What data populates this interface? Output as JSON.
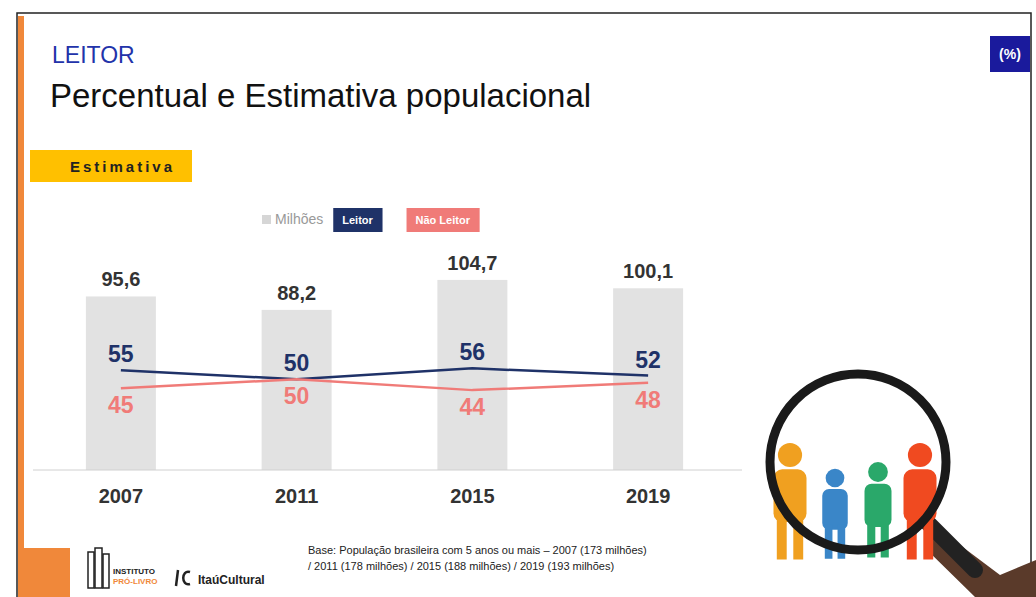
{
  "chart_data": {
    "type": "bar",
    "subtitle": "LEITOR",
    "title": "Percentual e Estimativa populacional",
    "annotations": [
      "Estimativa",
      "(%)",
      "Base: População brasileira com 5 anos ou mais – 2007 (173 milhões)",
      "/ 2011 (178 milhões) / 2015 (188 milhões) / 2019 (193 milhões)",
      "INSTITUTO",
      "PRÓ-LIVRO",
      "ItaúCultural"
    ],
    "categories": [
      "2007",
      "2011",
      "2015",
      "2019"
    ],
    "series": [
      {
        "name": "Milhões",
        "type": "bar",
        "color": "#e2e2e2",
        "values": [
          95.6,
          88.2,
          104.7,
          100.1
        ],
        "value_labels": [
          "95,6",
          "88,2",
          "104,7",
          "100,1"
        ]
      },
      {
        "name": "Leitor",
        "type": "line",
        "axis": "y2",
        "color": "#1f3268",
        "values": [
          55,
          50,
          56,
          52
        ]
      },
      {
        "name": "Não Leitor",
        "type": "line",
        "axis": "y2",
        "color": "#f07b78",
        "values": [
          45,
          50,
          44,
          48
        ]
      }
    ],
    "ylim": [
      0,
      130
    ],
    "y2lim": [
      0,
      130
    ],
    "tick_labels": "x",
    "data_labels": true,
    "legend": "top"
  }
}
